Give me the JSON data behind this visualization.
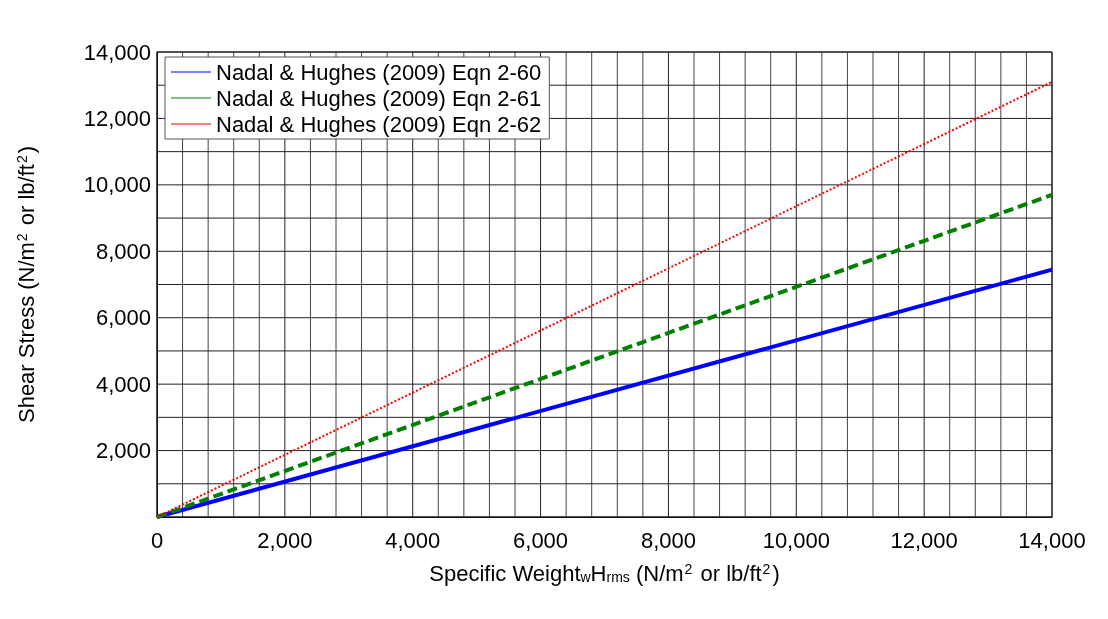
{
  "chart_data": {
    "type": "line",
    "xlabel": "Specific Weight$_{w}$H$_{rms}$ (N/m$^{2}$ or lb/ft$^{2}$)",
    "ylabel": "Shear Stress (N/m$^{2}$ or lb/ft$^{2}$)",
    "x": [
      0,
      14000
    ],
    "series": [
      {
        "name": "Nadal & Hughes (2009) Eqn 2-60",
        "color": "#0000ff",
        "line_style": "solid",
        "values": [
          0,
          7450
        ]
      },
      {
        "name": "Nadal & Hughes (2009) Eqn 2-61",
        "color": "#008000",
        "line_style": "dashed",
        "values": [
          0,
          9700
        ]
      },
      {
        "name": "Nadal & Hughes (2009) Eqn 2-62",
        "color": "#ff0000",
        "line_style": "dotted",
        "values": [
          0,
          13100
        ]
      }
    ],
    "xlim": [
      0,
      14000
    ],
    "xticks": [
      {
        "value": 0,
        "label": "0"
      },
      {
        "value": 400,
        "label": null
      },
      {
        "value": 800,
        "label": null
      },
      {
        "value": 1200,
        "label": null
      },
      {
        "value": 1600,
        "label": null
      },
      {
        "value": 2000,
        "label": "2,000"
      },
      {
        "value": 2400,
        "label": null
      },
      {
        "value": 2800,
        "label": null
      },
      {
        "value": 3200,
        "label": null
      },
      {
        "value": 3600,
        "label": null
      },
      {
        "value": 4000,
        "label": "4,000"
      },
      {
        "value": 4400,
        "label": null
      },
      {
        "value": 4800,
        "label": null
      },
      {
        "value": 5200,
        "label": null
      },
      {
        "value": 5600,
        "label": null
      },
      {
        "value": 6000,
        "label": "6,000"
      },
      {
        "value": 6400,
        "label": null
      },
      {
        "value": 6800,
        "label": null
      },
      {
        "value": 7200,
        "label": null
      },
      {
        "value": 7600,
        "label": null
      },
      {
        "value": 8000,
        "label": "8,000"
      },
      {
        "value": 8400,
        "label": null
      },
      {
        "value": 8800,
        "label": null
      },
      {
        "value": 9200,
        "label": null
      },
      {
        "value": 9600,
        "label": null
      },
      {
        "value": 10000,
        "label": "10,000"
      },
      {
        "value": 10400,
        "label": null
      },
      {
        "value": 10800,
        "label": null
      },
      {
        "value": 11200,
        "label": null
      },
      {
        "value": 11600,
        "label": null
      },
      {
        "value": 12000,
        "label": "12,000"
      },
      {
        "value": 12400,
        "label": null
      },
      {
        "value": 12800,
        "label": null
      },
      {
        "value": 13200,
        "label": null
      },
      {
        "value": 13600,
        "label": null
      },
      {
        "value": 14000,
        "label": "14,000"
      }
    ],
    "ylim": [
      0,
      14000
    ],
    "yticks": [
      {
        "value": 0,
        "label": null
      },
      {
        "value": 1000,
        "label": null
      },
      {
        "value": 2000,
        "label": "2,000"
      },
      {
        "value": 3000,
        "label": null
      },
      {
        "value": 4000,
        "label": "4,000"
      },
      {
        "value": 5000,
        "label": null
      },
      {
        "value": 6000,
        "label": "6,000"
      },
      {
        "value": 7000,
        "label": null
      },
      {
        "value": 8000,
        "label": "8,000"
      },
      {
        "value": 9000,
        "label": null
      },
      {
        "value": 10000,
        "label": "10,000"
      },
      {
        "value": 11000,
        "label": null
      },
      {
        "value": 12000,
        "label": "12,000"
      },
      {
        "value": 13000,
        "label": null
      },
      {
        "value": 14000,
        "label": "14,000"
      }
    ],
    "grid": true,
    "legend": "top left",
    "marker": "none"
  }
}
